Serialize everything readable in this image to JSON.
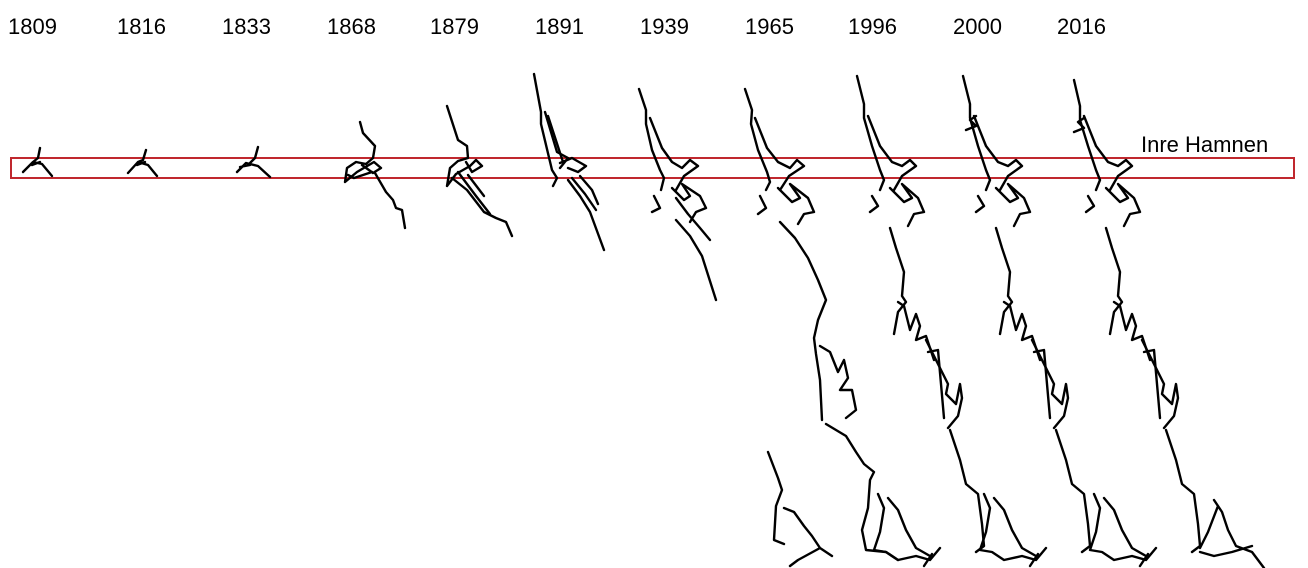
{
  "years": [
    "1809",
    "1816",
    "1833",
    "1868",
    "1879",
    "1891",
    "1939",
    "1965",
    "1996",
    "2000",
    "2016"
  ],
  "highlight": {
    "label": "Inre Hamnen",
    "color": "#c0282e"
  }
}
